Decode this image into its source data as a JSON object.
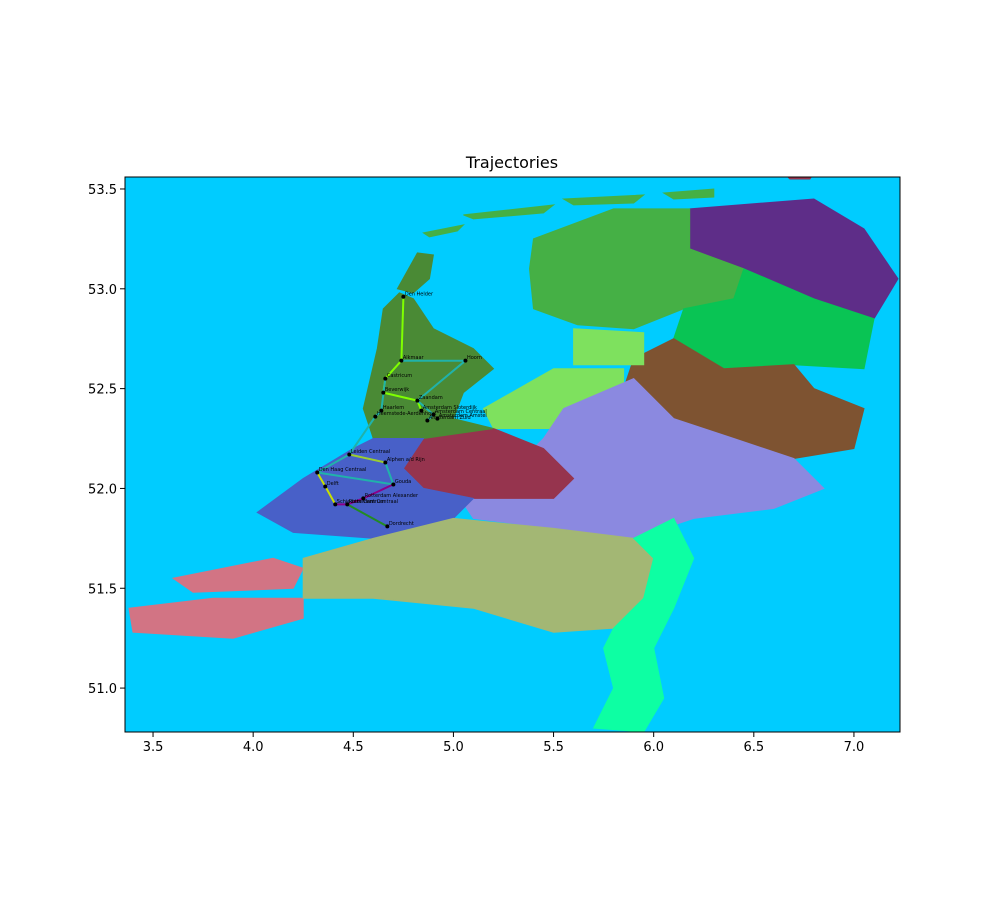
{
  "chart_data": {
    "type": "map",
    "title": "Trajectories",
    "xlim": [
      3.36,
      7.23
    ],
    "ylim": [
      50.78,
      53.56
    ],
    "xticks": [
      3.5,
      4.0,
      4.5,
      5.0,
      5.5,
      6.0,
      6.5,
      7.0
    ],
    "yticks": [
      51.0,
      51.5,
      52.0,
      52.5,
      53.0,
      53.5
    ],
    "xtick_labels": [
      "3.5",
      "4.0",
      "4.5",
      "5.0",
      "5.5",
      "6.0",
      "6.5",
      "7.0"
    ],
    "ytick_labels": [
      "51.0",
      "51.5",
      "52.0",
      "52.5",
      "53.0",
      "53.5"
    ],
    "background_color": "#00ccff",
    "regions": [
      {
        "id": "groningen",
        "color": "#5e2d88",
        "points": [
          [
            6.18,
            53.4
          ],
          [
            6.8,
            53.45
          ],
          [
            7.05,
            53.3
          ],
          [
            7.22,
            53.05
          ],
          [
            7.1,
            52.85
          ],
          [
            6.8,
            52.95
          ],
          [
            6.45,
            53.1
          ],
          [
            6.18,
            53.2
          ]
        ]
      },
      {
        "id": "friesland",
        "color": "#45b045",
        "points": [
          [
            5.4,
            53.25
          ],
          [
            5.8,
            53.4
          ],
          [
            6.18,
            53.4
          ],
          [
            6.18,
            53.2
          ],
          [
            6.45,
            53.1
          ],
          [
            6.4,
            52.95
          ],
          [
            6.15,
            52.9
          ],
          [
            5.9,
            52.8
          ],
          [
            5.62,
            52.82
          ],
          [
            5.4,
            52.9
          ],
          [
            5.38,
            53.1
          ]
        ]
      },
      {
        "id": "drenthe",
        "color": "#09c454",
        "points": [
          [
            6.45,
            53.1
          ],
          [
            6.8,
            52.95
          ],
          [
            7.1,
            52.85
          ],
          [
            7.05,
            52.6
          ],
          [
            6.7,
            52.62
          ],
          [
            6.35,
            52.6
          ],
          [
            6.1,
            52.75
          ],
          [
            6.15,
            52.9
          ],
          [
            6.4,
            52.95
          ]
        ]
      },
      {
        "id": "overijssel",
        "color": "#7e5331",
        "points": [
          [
            6.1,
            52.75
          ],
          [
            6.35,
            52.6
          ],
          [
            6.7,
            52.62
          ],
          [
            6.8,
            52.5
          ],
          [
            7.05,
            52.4
          ],
          [
            7.0,
            52.2
          ],
          [
            6.7,
            52.15
          ],
          [
            6.4,
            52.25
          ],
          [
            6.1,
            52.35
          ],
          [
            5.85,
            52.5
          ],
          [
            5.9,
            52.65
          ]
        ]
      },
      {
        "id": "flevoland",
        "color": "#7ee15e",
        "points": [
          [
            5.15,
            52.4
          ],
          [
            5.5,
            52.6
          ],
          [
            5.85,
            52.6
          ],
          [
            5.85,
            52.45
          ],
          [
            5.55,
            52.3
          ],
          [
            5.2,
            52.3
          ]
        ]
      },
      {
        "id": "noordoostpolder",
        "color": "#7ee15e",
        "points": [
          [
            5.6,
            52.8
          ],
          [
            5.95,
            52.78
          ],
          [
            5.95,
            52.62
          ],
          [
            5.6,
            52.62
          ]
        ]
      },
      {
        "id": "gelderland",
        "color": "#8b89e0",
        "points": [
          [
            5.55,
            52.4
          ],
          [
            5.9,
            52.55
          ],
          [
            6.1,
            52.35
          ],
          [
            6.4,
            52.25
          ],
          [
            6.7,
            52.15
          ],
          [
            6.85,
            52.0
          ],
          [
            6.6,
            51.9
          ],
          [
            6.2,
            51.85
          ],
          [
            5.9,
            51.75
          ],
          [
            5.5,
            51.8
          ],
          [
            5.1,
            51.85
          ],
          [
            5.0,
            52.0
          ],
          [
            5.3,
            52.1
          ],
          [
            5.45,
            52.25
          ]
        ]
      },
      {
        "id": "utrecht",
        "color": "#96344e",
        "points": [
          [
            4.85,
            52.25
          ],
          [
            5.2,
            52.3
          ],
          [
            5.45,
            52.2
          ],
          [
            5.6,
            52.05
          ],
          [
            5.5,
            51.95
          ],
          [
            5.1,
            51.95
          ],
          [
            4.85,
            52.0
          ],
          [
            4.75,
            52.1
          ]
        ]
      },
      {
        "id": "noord-holland",
        "color": "#4a8a35",
        "points": [
          [
            4.65,
            52.9
          ],
          [
            4.73,
            52.98
          ],
          [
            4.8,
            52.95
          ],
          [
            4.9,
            52.8
          ],
          [
            5.1,
            52.7
          ],
          [
            5.2,
            52.6
          ],
          [
            5.05,
            52.48
          ],
          [
            5.0,
            52.35
          ],
          [
            5.2,
            52.3
          ],
          [
            4.85,
            52.25
          ],
          [
            4.6,
            52.25
          ],
          [
            4.55,
            52.4
          ],
          [
            4.62,
            52.7
          ]
        ]
      },
      {
        "id": "texel",
        "color": "#4a8a35",
        "points": [
          [
            4.72,
            53.0
          ],
          [
            4.82,
            53.18
          ],
          [
            4.9,
            53.17
          ],
          [
            4.88,
            53.05
          ],
          [
            4.8,
            52.98
          ]
        ]
      },
      {
        "id": "zuid-holland",
        "color": "#4860c8",
        "points": [
          [
            4.5,
            52.2
          ],
          [
            4.6,
            52.25
          ],
          [
            4.85,
            52.25
          ],
          [
            4.75,
            52.1
          ],
          [
            4.85,
            52.0
          ],
          [
            5.1,
            51.95
          ],
          [
            5.0,
            51.85
          ],
          [
            4.6,
            51.75
          ],
          [
            4.2,
            51.78
          ],
          [
            4.02,
            51.88
          ],
          [
            4.25,
            52.05
          ]
        ]
      },
      {
        "id": "zeeland",
        "color": "#d27484",
        "points": [
          [
            3.38,
            51.4
          ],
          [
            3.8,
            51.45
          ],
          [
            4.25,
            51.45
          ],
          [
            4.25,
            51.35
          ],
          [
            3.9,
            51.25
          ],
          [
            3.4,
            51.28
          ]
        ]
      },
      {
        "id": "zeeland-north",
        "color": "#d27484",
        "points": [
          [
            3.6,
            51.55
          ],
          [
            4.1,
            51.65
          ],
          [
            4.25,
            51.6
          ],
          [
            4.2,
            51.5
          ],
          [
            3.7,
            51.48
          ]
        ]
      },
      {
        "id": "noord-brabant",
        "color": "#a3b774",
        "points": [
          [
            4.25,
            51.65
          ],
          [
            4.6,
            51.75
          ],
          [
            5.0,
            51.85
          ],
          [
            5.5,
            51.8
          ],
          [
            5.9,
            51.75
          ],
          [
            6.0,
            51.65
          ],
          [
            5.95,
            51.45
          ],
          [
            5.8,
            51.3
          ],
          [
            5.5,
            51.28
          ],
          [
            5.1,
            51.4
          ],
          [
            4.6,
            51.45
          ],
          [
            4.25,
            51.45
          ]
        ]
      },
      {
        "id": "limburg",
        "color": "#0dffa3",
        "points": [
          [
            5.9,
            51.75
          ],
          [
            6.1,
            51.85
          ],
          [
            6.2,
            51.65
          ],
          [
            6.1,
            51.4
          ],
          [
            6.0,
            51.2
          ],
          [
            6.05,
            50.95
          ],
          [
            5.95,
            50.78
          ],
          [
            5.7,
            50.8
          ],
          [
            5.8,
            51.0
          ],
          [
            5.75,
            51.2
          ],
          [
            5.8,
            51.3
          ],
          [
            5.95,
            51.45
          ],
          [
            6.0,
            51.65
          ]
        ]
      },
      {
        "id": "schiermonnikoog",
        "color": "#45b045",
        "points": [
          [
            6.05,
            53.48
          ],
          [
            6.3,
            53.5
          ],
          [
            6.3,
            53.46
          ],
          [
            6.1,
            53.45
          ]
        ]
      },
      {
        "id": "ameland",
        "color": "#45b045",
        "points": [
          [
            5.55,
            53.45
          ],
          [
            5.95,
            53.47
          ],
          [
            5.9,
            53.43
          ],
          [
            5.6,
            53.42
          ]
        ]
      },
      {
        "id": "terschelling",
        "color": "#45b045",
        "points": [
          [
            5.05,
            53.37
          ],
          [
            5.5,
            53.42
          ],
          [
            5.45,
            53.38
          ],
          [
            5.1,
            53.35
          ]
        ]
      },
      {
        "id": "vlieland",
        "color": "#45b045",
        "points": [
          [
            4.85,
            53.28
          ],
          [
            5.05,
            53.32
          ],
          [
            5.02,
            53.29
          ],
          [
            4.88,
            53.26
          ]
        ]
      },
      {
        "id": "borkum",
        "color": "#96344e",
        "points": [
          [
            6.65,
            53.58
          ],
          [
            6.8,
            53.58
          ],
          [
            6.78,
            53.55
          ],
          [
            6.68,
            53.55
          ]
        ]
      }
    ],
    "stations": [
      {
        "name": "Den Helder",
        "lon": 4.75,
        "lat": 52.96
      },
      {
        "name": "Alkmaar",
        "lon": 4.74,
        "lat": 52.64
      },
      {
        "name": "Hoorn",
        "lon": 5.06,
        "lat": 52.64
      },
      {
        "name": "Castricum",
        "lon": 4.66,
        "lat": 52.55
      },
      {
        "name": "Beverwijk",
        "lon": 4.65,
        "lat": 52.48
      },
      {
        "name": "Zaandam",
        "lon": 4.82,
        "lat": 52.44
      },
      {
        "name": "Haarlem",
        "lon": 4.64,
        "lat": 52.39
      },
      {
        "name": "Amsterdam Sloterdijk",
        "lon": 4.84,
        "lat": 52.39
      },
      {
        "name": "Heemstede-Aerdenhout",
        "lon": 4.61,
        "lat": 52.36
      },
      {
        "name": "Amsterdam Centraal",
        "lon": 4.9,
        "lat": 52.37
      },
      {
        "name": "Amsterdam Amstel",
        "lon": 4.92,
        "lat": 52.35
      },
      {
        "name": "Amsterdam Zuid",
        "lon": 4.87,
        "lat": 52.34
      },
      {
        "name": "Leiden Centraal",
        "lon": 4.48,
        "lat": 52.17
      },
      {
        "name": "Alphen a/d Rijn",
        "lon": 4.66,
        "lat": 52.13
      },
      {
        "name": "Den Haag Centraal",
        "lon": 4.32,
        "lat": 52.08
      },
      {
        "name": "Gouda",
        "lon": 4.7,
        "lat": 52.02
      },
      {
        "name": "Delft",
        "lon": 4.36,
        "lat": 52.01
      },
      {
        "name": "Rotterdam Alexander",
        "lon": 4.55,
        "lat": 51.95
      },
      {
        "name": "Rotterdam Centraal",
        "lon": 4.47,
        "lat": 51.92
      },
      {
        "name": "Schiedam Centrum",
        "lon": 4.41,
        "lat": 51.92
      },
      {
        "name": "Dordrecht",
        "lon": 4.67,
        "lat": 51.81
      }
    ],
    "trajectories": [
      {
        "color": "#7fff00",
        "path": [
          "Den Helder",
          "Alkmaar",
          "Castricum",
          "Beverwijk",
          "Zaandam",
          "Amsterdam Sloterdijk"
        ]
      },
      {
        "color": "#20b2aa",
        "path": [
          "Alkmaar",
          "Hoorn",
          "Zaandam",
          "Amsterdam Centraal",
          "Amsterdam Zuid"
        ]
      },
      {
        "color": "#20b2aa",
        "path": [
          "Castricum",
          "Haarlem",
          "Heemstede-Aerdenhout",
          "Leiden Centraal",
          "Den Haag Centraal"
        ]
      },
      {
        "color": "#9acd32",
        "path": [
          "Leiden Centraal",
          "Alphen a/d Rijn"
        ]
      },
      {
        "color": "#20b2aa",
        "path": [
          "Alphen a/d Rijn",
          "Gouda",
          "Den Haag Centraal"
        ]
      },
      {
        "color": "#c8e000",
        "path": [
          "Den Haag Centraal",
          "Delft",
          "Schiedam Centrum"
        ]
      },
      {
        "color": "#8b008b",
        "path": [
          "Schiedam Centrum",
          "Rotterdam Centraal",
          "Rotterdam Alexander",
          "Gouda"
        ]
      },
      {
        "color": "#228b22",
        "path": [
          "Rotterdam Centraal",
          "Dordrecht"
        ]
      }
    ]
  }
}
